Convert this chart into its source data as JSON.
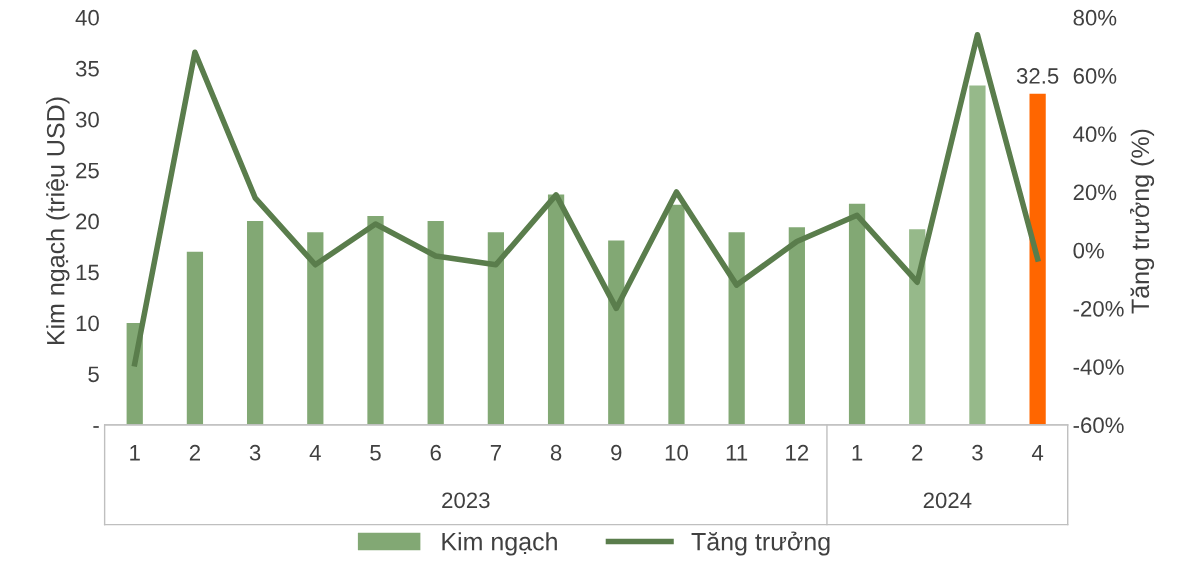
{
  "chart_data": {
    "type": "bar",
    "ylabel": "Kim ngạch (triệu USD)",
    "y2label": "Tăng trưởng (%)",
    "categories": [
      "1",
      "2",
      "3",
      "4",
      "5",
      "6",
      "7",
      "8",
      "9",
      "10",
      "11",
      "12",
      "1",
      "2",
      "3",
      "4"
    ],
    "annotations": [
      "2023",
      "2024"
    ],
    "series": [
      {
        "name": "Kim ngạch",
        "color": "#82a874",
        "colors": [
          "#82a874",
          "#82a874",
          "#82a874",
          "#82a874",
          "#82a874",
          "#82a874",
          "#82a874",
          "#82a874",
          "#82a874",
          "#82a874",
          "#82a874",
          "#82a874",
          "#82a874",
          "#96b98a",
          "#96b98a",
          "#ff6600"
        ],
        "values": [
          10,
          17,
          20,
          18.9,
          20.5,
          20,
          18.9,
          22.6,
          18.1,
          21.6,
          18.9,
          19.4,
          21.7,
          19.2,
          33.3,
          32.5
        ],
        "value_labels": [
          null,
          null,
          null,
          null,
          null,
          null,
          null,
          null,
          null,
          null,
          null,
          null,
          null,
          null,
          null,
          "32.5"
        ]
      },
      {
        "name": "Tăng trưởng",
        "type": "line",
        "axis": "y2",
        "color": "#5a7d4c",
        "values": [
          -39,
          68,
          18,
          -5,
          9,
          -2,
          -5,
          19,
          -20,
          20,
          -12,
          3,
          12,
          -11,
          74,
          -3
        ]
      }
    ],
    "ylim": [
      0,
      40
    ],
    "yticks": [
      {
        "value": 0,
        "label": "-"
      },
      5,
      10,
      15,
      20,
      25,
      30,
      35,
      40
    ],
    "y2lim": [
      -60,
      80
    ],
    "y2ticks": [
      {
        "value": -60,
        "label": "-60%"
      },
      {
        "value": -40,
        "label": "-40%"
      },
      {
        "value": -20,
        "label": "-20%"
      },
      {
        "value": 0,
        "label": "0%"
      },
      {
        "value": 20,
        "label": "20%"
      },
      {
        "value": 40,
        "label": "40%"
      },
      {
        "value": 60,
        "label": "60%"
      },
      {
        "value": 80,
        "label": "80%"
      }
    ],
    "grid": false,
    "legend": "bottom",
    "marker": "none",
    "line_style": "solid"
  }
}
